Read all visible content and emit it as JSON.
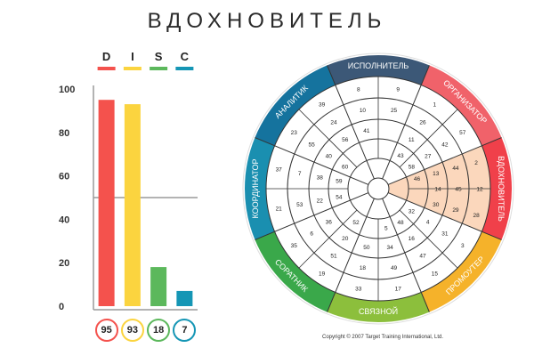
{
  "title": "ВДОХНОВИТЕЛЬ",
  "chart_data": [
    {
      "type": "bar",
      "categories": [
        "D",
        "I",
        "S",
        "C"
      ],
      "values": [
        95,
        93,
        18,
        7
      ],
      "colors": [
        "#f4524d",
        "#fbd43f",
        "#5cb85c",
        "#1596b5"
      ],
      "ylim": [
        0,
        100
      ],
      "yticks": [
        "0",
        "20",
        "40",
        "60",
        "80",
        "100"
      ],
      "midline": 50,
      "grid": false
    },
    {
      "type": "disc-wheel",
      "segments": [
        {
          "label": "ИСПОЛНИТЕЛЬ",
          "color": "#3c5877",
          "numbers": [
            "8",
            "9",
            "10",
            "25",
            "41"
          ]
        },
        {
          "label": "ОРГАНИЗАТОР",
          "color": "#f0626a",
          "numbers": [
            "1",
            "57",
            "26",
            "42",
            "11",
            "27",
            "43",
            "58"
          ]
        },
        {
          "label": "ВДОХНОВИТЕЛЬ",
          "color": "#f0404a",
          "numbers": [
            "2",
            "12",
            "28",
            "44",
            "45",
            "29",
            "13",
            "14",
            "30",
            "46"
          ]
        },
        {
          "label": "ПРОМОУТЕР",
          "color": "#f5b22a",
          "numbers": [
            "3",
            "15",
            "31",
            "47",
            "4",
            "16",
            "32",
            "48"
          ]
        },
        {
          "label": "СВЯЗНОЙ",
          "color": "#8cbf3c",
          "numbers": [
            "17",
            "33",
            "49",
            "18",
            "34",
            "50",
            "5"
          ]
        },
        {
          "label": "СОРАТНИК",
          "color": "#3aa84a",
          "numbers": [
            "19",
            "35",
            "51",
            "6",
            "20",
            "36",
            "52"
          ]
        },
        {
          "label": "КООРДИНАТОР",
          "color": "#1a8fb0",
          "numbers": [
            "21",
            "37",
            "53",
            "7",
            "22",
            "38",
            "54",
            "59"
          ]
        },
        {
          "label": "АНАЛИТИК",
          "color": "#15739e",
          "numbers": [
            "23",
            "39",
            "55",
            "24",
            "40",
            "56",
            "60"
          ]
        }
      ],
      "highlight": {
        "segment": "ВДОХНОВИТЕЛЬ",
        "color": "#fbd3b5"
      },
      "copyright": "Copyright © 2007 Target Training International, Ltd."
    }
  ]
}
